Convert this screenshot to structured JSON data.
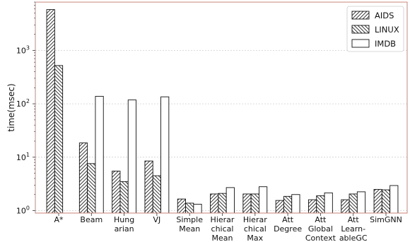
{
  "chart_data": {
    "type": "bar",
    "ylabel": "time(msec)",
    "xlabel": "",
    "yscale": "log",
    "ylim": [
      0.9,
      8000
    ],
    "yticks": [
      {
        "value": 1,
        "base": "10",
        "exp": "0"
      },
      {
        "value": 10,
        "base": "10",
        "exp": "1"
      },
      {
        "value": 100,
        "base": "10",
        "exp": "2"
      },
      {
        "value": 1000,
        "base": "10",
        "exp": "3"
      }
    ],
    "grid": "horizontal",
    "legend_position": "top-right",
    "categories": [
      [
        "A*"
      ],
      [
        "Beam"
      ],
      [
        "Hung",
        "arian"
      ],
      [
        "VJ"
      ],
      [
        "Simple",
        "Mean"
      ],
      [
        "Hierar",
        "chical",
        "Mean"
      ],
      [
        "Hierar",
        "chical",
        "Max"
      ],
      [
        "Att",
        "Degree"
      ],
      [
        "Att",
        "Global",
        "Context"
      ],
      [
        "Att",
        "Learn-",
        "ableGC"
      ],
      [
        "SimGNN"
      ]
    ],
    "series": [
      {
        "name": "AIDS",
        "pattern": "hatch-fwd",
        "values": [
          5800,
          18.5,
          5.5,
          8.5,
          1.65,
          2.05,
          2.05,
          1.55,
          1.6,
          1.6,
          2.5
        ]
      },
      {
        "name": "LINUX",
        "pattern": "hatch-back",
        "values": [
          520,
          7.6,
          3.5,
          4.5,
          1.38,
          2.1,
          2.05,
          1.85,
          1.9,
          2.05,
          2.45
        ]
      },
      {
        "name": "IMDB",
        "pattern": "none",
        "values": [
          null,
          138,
          118,
          135,
          1.32,
          2.7,
          2.8,
          2.0,
          2.15,
          2.25,
          2.95
        ]
      }
    ]
  }
}
